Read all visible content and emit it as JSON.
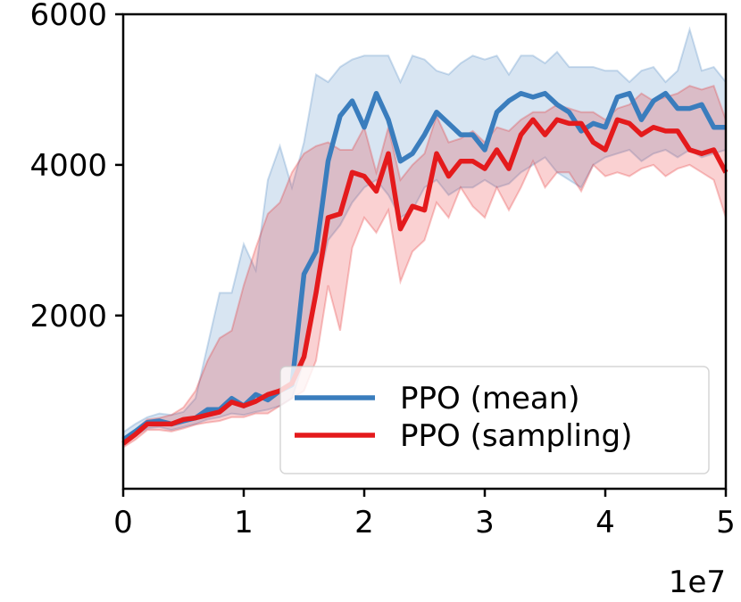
{
  "chart_data": {
    "type": "line",
    "title": "",
    "xlabel": "",
    "ylabel": "",
    "x_offset_label": "1e7",
    "xlim": [
      0,
      5
    ],
    "ylim": [
      -300,
      6000
    ],
    "x_ticks": [
      0,
      1,
      2,
      3,
      4,
      5
    ],
    "x_tick_labels": [
      "0",
      "1",
      "2",
      "3",
      "4",
      "5"
    ],
    "y_ticks": [
      2000,
      4000,
      6000
    ],
    "y_tick_labels": [
      "2000",
      "4000",
      "6000"
    ],
    "legend_position": "lower-right",
    "x": [
      0,
      0.1,
      0.2,
      0.3,
      0.4,
      0.5,
      0.6,
      0.7,
      0.8,
      0.9,
      1.0,
      1.1,
      1.2,
      1.3,
      1.4,
      1.5,
      1.6,
      1.7,
      1.8,
      1.9,
      2.0,
      2.1,
      2.2,
      2.3,
      2.4,
      2.5,
      2.6,
      2.7,
      2.8,
      2.9,
      3.0,
      3.1,
      3.2,
      3.3,
      3.4,
      3.5,
      3.6,
      3.7,
      3.8,
      3.9,
      4.0,
      4.1,
      4.2,
      4.3,
      4.4,
      4.5,
      4.6,
      4.7,
      4.8,
      4.9,
      5.0
    ],
    "series": [
      {
        "name": "PPO (mean)",
        "color": "#3a7dbd",
        "values": [
          350,
          460,
          580,
          600,
          560,
          600,
          640,
          750,
          750,
          900,
          800,
          950,
          880,
          1000,
          1080,
          2550,
          2850,
          4050,
          4650,
          4850,
          4500,
          4950,
          4600,
          4050,
          4150,
          4400,
          4700,
          4550,
          4400,
          4400,
          4200,
          4700,
          4850,
          4950,
          4900,
          4950,
          4800,
          4700,
          4450,
          4550,
          4500,
          4900,
          4950,
          4600,
          4850,
          4950,
          4750,
          4750,
          4800,
          4500,
          4500
        ],
        "lower": [
          300,
          400,
          500,
          520,
          480,
          520,
          560,
          620,
          650,
          700,
          680,
          720,
          750,
          800,
          900,
          1400,
          2300,
          3000,
          3200,
          3500,
          3700,
          3800,
          3600,
          3300,
          3400,
          3700,
          3800,
          3600,
          3700,
          3700,
          3800,
          3700,
          3750,
          3900,
          4000,
          4100,
          3900,
          3800,
          3700,
          4000,
          4100,
          4150,
          4200,
          4050,
          4150,
          4200,
          4100,
          4200,
          4100,
          4150,
          4200
        ],
        "upper": [
          450,
          560,
          650,
          700,
          680,
          720,
          900,
          1600,
          2300,
          2300,
          2950,
          2600,
          3800,
          4250,
          3700,
          4300,
          5200,
          5100,
          5300,
          5400,
          5450,
          5450,
          5450,
          5100,
          5450,
          5400,
          5250,
          5200,
          5350,
          5450,
          5400,
          5450,
          5200,
          5450,
          5450,
          5350,
          5500,
          5300,
          5300,
          5300,
          5250,
          5250,
          5100,
          5250,
          5300,
          5100,
          5250,
          5800,
          5250,
          5300,
          5100
        ]
      },
      {
        "name": "PPO (sampling)",
        "color": "#e41a1c",
        "values": [
          300,
          420,
          560,
          560,
          560,
          620,
          640,
          680,
          720,
          850,
          800,
          860,
          950,
          1000,
          1100,
          1450,
          2300,
          3300,
          3350,
          3900,
          3850,
          3650,
          4150,
          3150,
          3450,
          3400,
          4150,
          3850,
          4050,
          4050,
          3950,
          4200,
          3950,
          4400,
          4600,
          4400,
          4600,
          4550,
          4550,
          4300,
          4200,
          4600,
          4550,
          4400,
          4500,
          4450,
          4450,
          4200,
          4150,
          4200,
          3900
        ],
        "lower": [
          250,
          350,
          480,
          480,
          460,
          500,
          550,
          580,
          600,
          650,
          650,
          700,
          700,
          800,
          900,
          1000,
          1400,
          2400,
          1800,
          2900,
          3300,
          3100,
          3400,
          2450,
          2850,
          3000,
          3500,
          3300,
          3700,
          3450,
          3300,
          3700,
          3400,
          3700,
          4050,
          3700,
          3900,
          3900,
          3650,
          4000,
          3850,
          3900,
          3850,
          3950,
          4000,
          3850,
          3950,
          4000,
          3900,
          3800,
          3300
        ],
        "upper": [
          350,
          480,
          620,
          640,
          680,
          780,
          1000,
          1400,
          1700,
          1800,
          2400,
          2900,
          3350,
          3500,
          3900,
          4150,
          4250,
          4300,
          4200,
          4200,
          4500,
          3900,
          4500,
          3800,
          4000,
          4150,
          4650,
          4300,
          4350,
          4450,
          4300,
          4500,
          4450,
          4600,
          4700,
          4700,
          4800,
          4750,
          4700,
          4700,
          4600,
          4750,
          4800,
          4950,
          4850,
          4900,
          4950,
          5050,
          5000,
          5050,
          4600
        ]
      }
    ]
  }
}
